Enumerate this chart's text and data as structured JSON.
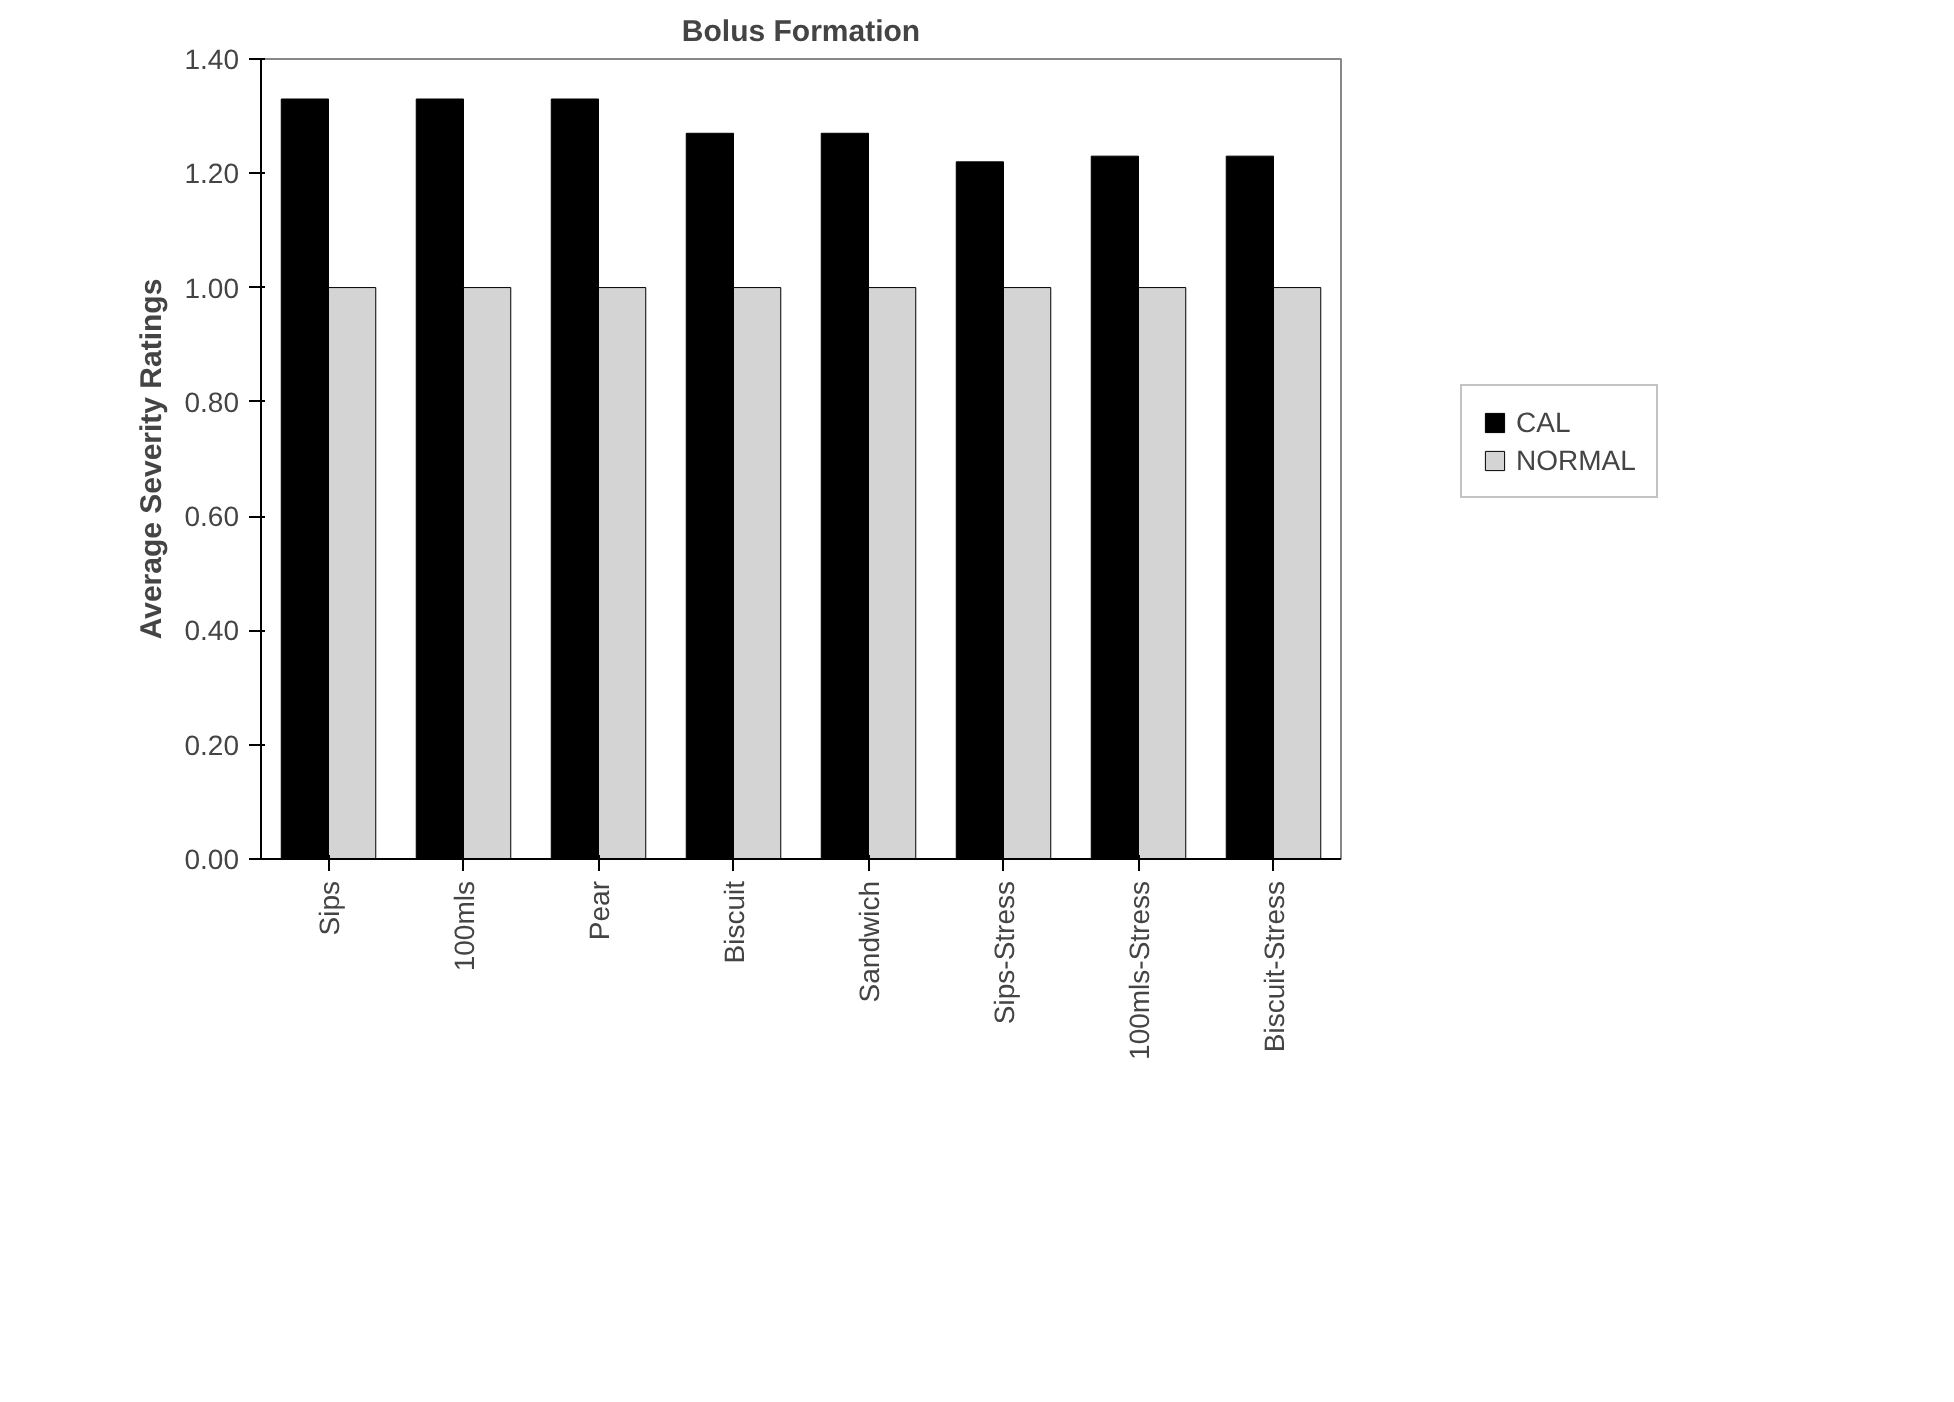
{
  "chart_data": {
    "type": "bar",
    "title": "Bolus Formation",
    "ylabel": "Average Severity Ratings",
    "categories": [
      "Sips",
      "100mls",
      "Pear",
      "Biscuit",
      "Sandwich",
      "Sips-Stress",
      "100mls-Stress",
      "Biscuit-Stress"
    ],
    "series": [
      {
        "name": "CAL",
        "color": "#000000",
        "values": [
          1.33,
          1.33,
          1.33,
          1.27,
          1.27,
          1.22,
          1.23,
          1.23
        ]
      },
      {
        "name": "NORMAL",
        "color": "#d4d4d4",
        "values": [
          1.0,
          1.0,
          1.0,
          1.0,
          1.0,
          1.0,
          1.0,
          1.0
        ]
      }
    ],
    "ylim": [
      0,
      1.4
    ],
    "yticks": [
      {
        "value": 0,
        "label": "0.00"
      },
      {
        "value": 0.2,
        "label": "0.20"
      },
      {
        "value": 0.4,
        "label": "0.40"
      },
      {
        "value": 0.6,
        "label": "0.60"
      },
      {
        "value": 0.8,
        "label": "0.80"
      },
      {
        "value": 1.0,
        "label": "1.00"
      },
      {
        "value": 1.2,
        "label": "1.20"
      },
      {
        "value": 1.4,
        "label": "1.40"
      }
    ],
    "legend": "right",
    "grid": false
  }
}
